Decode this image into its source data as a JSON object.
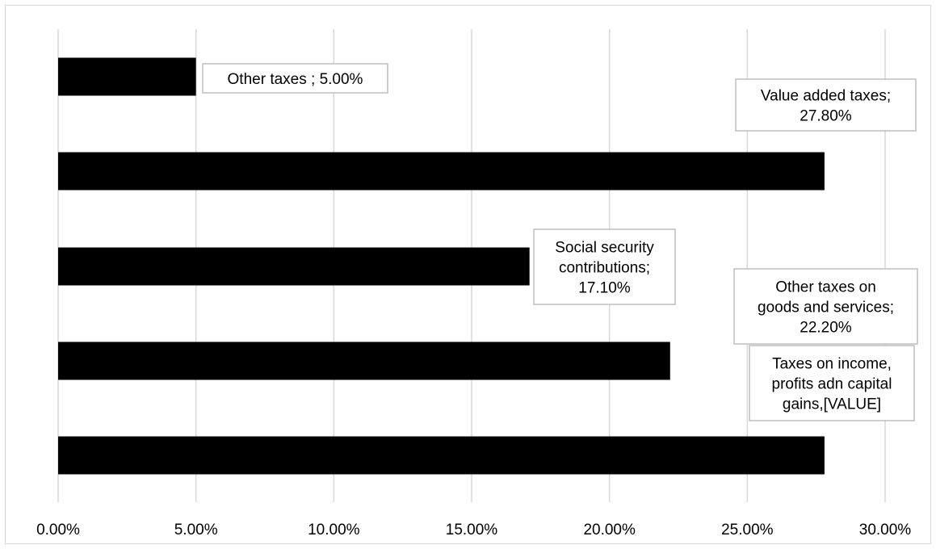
{
  "chart_data": {
    "type": "bar",
    "orientation": "horizontal",
    "title": "",
    "xlabel": "",
    "ylabel": "",
    "xlim": [
      0,
      30
    ],
    "grid": true,
    "legend": "none",
    "bar_color": "#000000",
    "x_ticks": [
      "0.00%",
      "5.00%",
      "10.00%",
      "15.00%",
      "20.00%",
      "25.00%",
      "30.00%"
    ],
    "categories": [
      "Other taxes",
      "Value added taxes",
      "Social security contributions",
      "Other taxes on goods and services",
      "Taxes on income, profits adn capital gains"
    ],
    "values": [
      5.0,
      27.8,
      17.1,
      22.2,
      27.8
    ],
    "data_labels": [
      [
        "Other taxes ; 5.00%"
      ],
      [
        "Value added taxes;",
        "27.80%"
      ],
      [
        "Social security",
        "contributions;",
        "17.10%"
      ],
      [
        "Other taxes on",
        "goods and services;",
        "22.20%"
      ],
      [
        "Taxes on income,",
        "profits adn capital",
        "gains,[VALUE]"
      ]
    ]
  }
}
